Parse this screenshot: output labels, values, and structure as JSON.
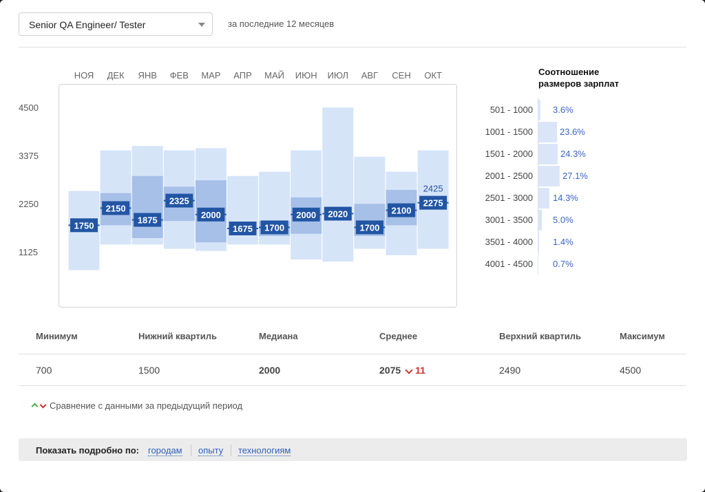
{
  "filter": {
    "position_label": "Senior QA Engineer/ Tester",
    "period_label": "за последние 12 месяцев"
  },
  "colors": {
    "bar_light": "#d6e4f8",
    "bar_mid": "#a6c0e8",
    "label_bg": "#2255a4",
    "accent_text": "#2f5fb8",
    "down": "#c9342b",
    "up": "#4ca84c"
  },
  "chart_data": {
    "type": "boxplot",
    "categories": [
      "НОЯ",
      "ДЕК",
      "ЯНВ",
      "ФЕВ",
      "МАР",
      "АПР",
      "МАЙ",
      "ИЮН",
      "ИЮЛ",
      "АВГ",
      "СЕН",
      "ОКТ"
    ],
    "y_ticks": [
      "4500",
      "3375",
      "2250",
      "1125"
    ],
    "ylim": [
      0,
      5300
    ],
    "series": [
      {
        "min": 700,
        "q1": 1750,
        "median": 1750,
        "q3": 1750,
        "max": 2550
      },
      {
        "min": 1300,
        "q1": 1750,
        "median": 2150,
        "q3": 2500,
        "max": 3500
      },
      {
        "min": 1300,
        "q1": 1450,
        "median": 1875,
        "q3": 2900,
        "max": 3600
      },
      {
        "min": 1200,
        "q1": 1850,
        "median": 2325,
        "q3": 2650,
        "max": 3500
      },
      {
        "min": 1150,
        "q1": 1350,
        "median": 2000,
        "q3": 2800,
        "max": 3550
      },
      {
        "min": 1300,
        "q1": 1675,
        "median": 1675,
        "q3": 1675,
        "max": 2900
      },
      {
        "min": 1300,
        "q1": 1500,
        "median": 1700,
        "q3": 1850,
        "max": 3000
      },
      {
        "min": 950,
        "q1": 1550,
        "median": 2000,
        "q3": 2400,
        "max": 3500
      },
      {
        "min": 900,
        "q1": 2020,
        "median": 2020,
        "q3": 2020,
        "max": 4500
      },
      {
        "min": 1200,
        "q1": 1500,
        "median": 1700,
        "q3": 2250,
        "max": 3350
      },
      {
        "min": 1050,
        "q1": 1750,
        "median": 2100,
        "q3": 2575,
        "max": 3000
      },
      {
        "min": 1200,
        "q1": 2275,
        "median": 2275,
        "q3": 2275,
        "max": 3500
      }
    ],
    "extra_labels": [
      {
        "index": 11,
        "text": "2425"
      }
    ]
  },
  "ratio": {
    "title_line1": "Соотношение",
    "title_line2": "размеров зарплат",
    "rows": [
      {
        "range": "501 - 1000",
        "pct": "3.6%",
        "value": 3.6
      },
      {
        "range": "1001 - 1500",
        "pct": "23.6%",
        "value": 23.6
      },
      {
        "range": "1501 - 2000",
        "pct": "24.3%",
        "value": 24.3
      },
      {
        "range": "2001 - 2500",
        "pct": "27.1%",
        "value": 27.1
      },
      {
        "range": "2501 - 3000",
        "pct": "14.3%",
        "value": 14.3
      },
      {
        "range": "3001 - 3500",
        "pct": "5.0%",
        "value": 5.0
      },
      {
        "range": "3501 - 4000",
        "pct": "1.4%",
        "value": 1.4
      },
      {
        "range": "4001 - 4500",
        "pct": "0.7%",
        "value": 0.7
      }
    ]
  },
  "stats": {
    "headers": [
      "Минимум",
      "Нижний квартиль",
      "Медиана",
      "Среднее",
      "Верхний квартиль",
      "Максимум"
    ],
    "min": "700",
    "q1": "1500",
    "median": "2000",
    "mean": "2075",
    "mean_delta": "11",
    "q3": "2490",
    "max": "4500"
  },
  "compare_text": "Сравнение с данными за предыдущий период",
  "footer": {
    "label": "Показать подробно по:",
    "links": [
      "городам",
      "опыту",
      "технологиям"
    ]
  }
}
